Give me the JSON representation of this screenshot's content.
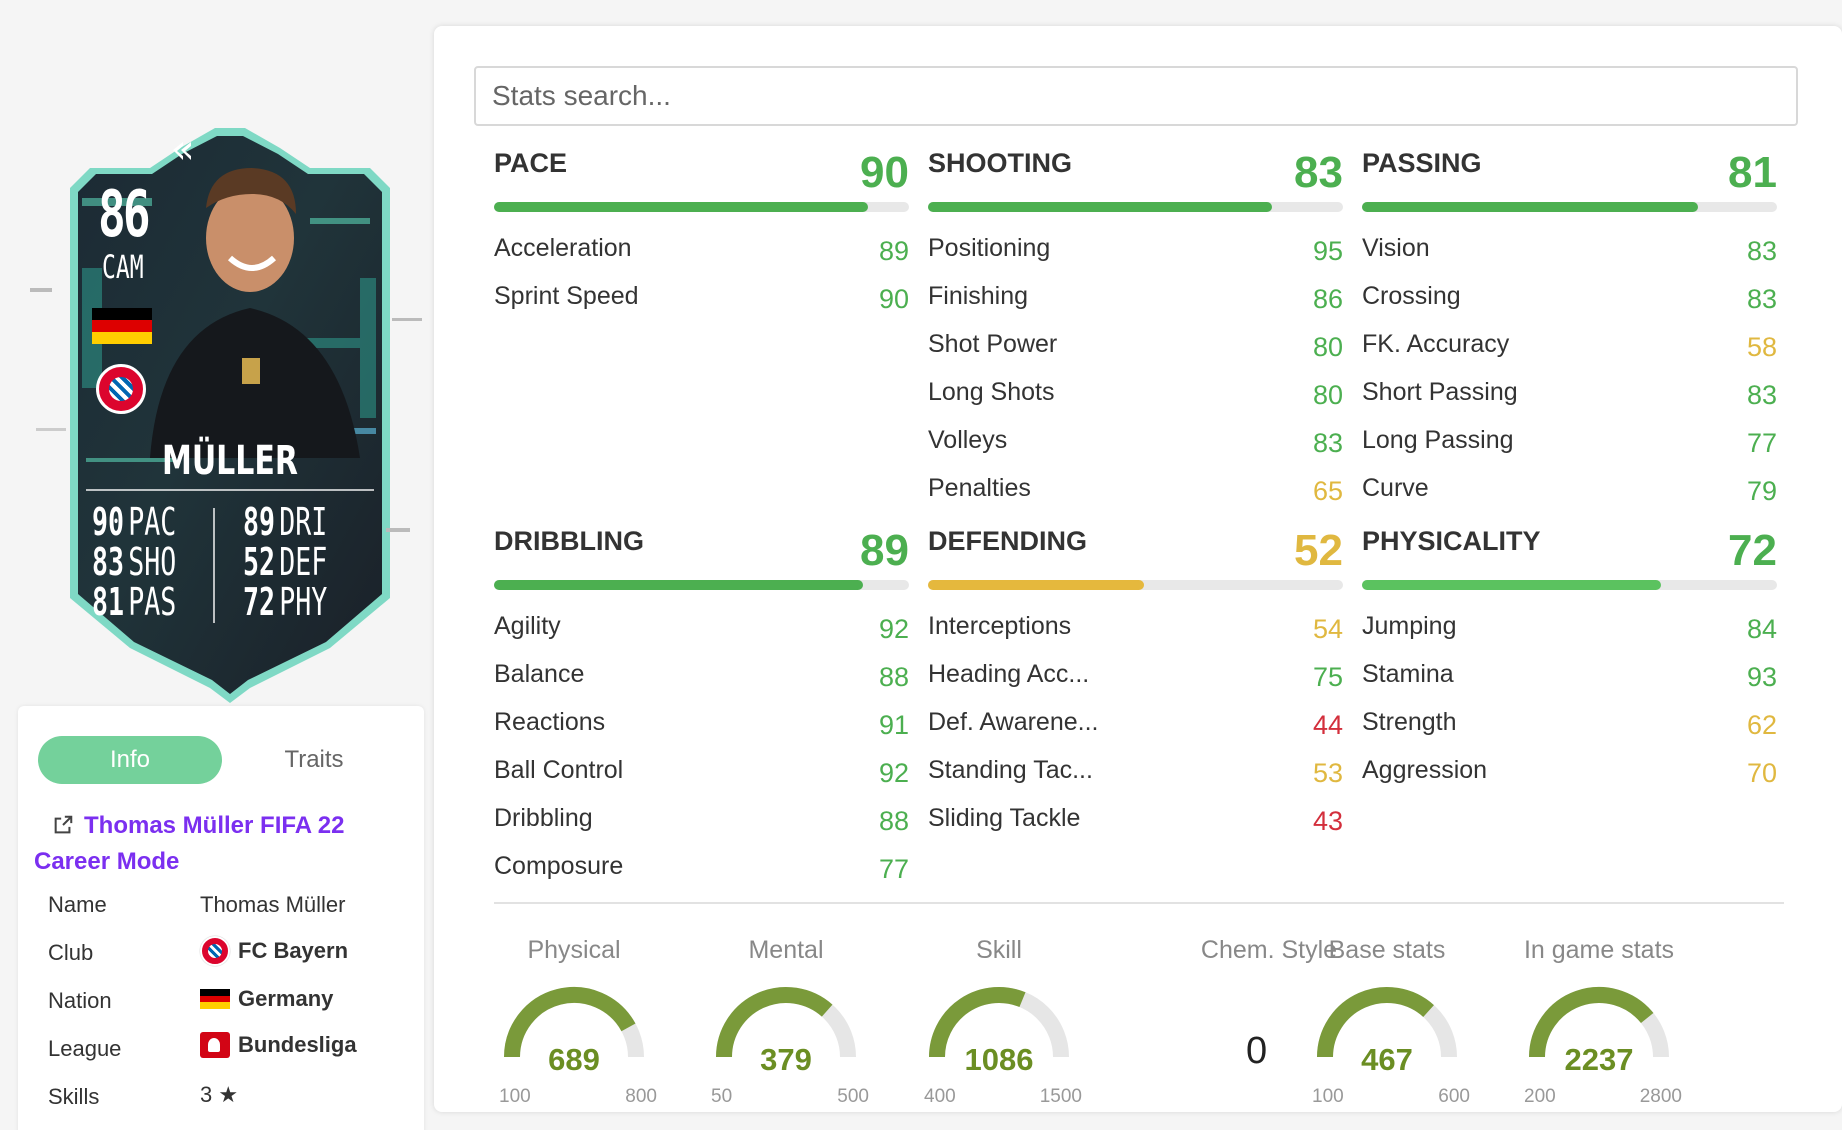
{
  "card": {
    "rating": "86",
    "position": "CAM",
    "name": "MÜLLER",
    "stats": [
      {
        "value": "90",
        "label": "PAC"
      },
      {
        "value": "83",
        "label": "SHO"
      },
      {
        "value": "81",
        "label": "PAS"
      },
      {
        "value": "89",
        "label": "DRI"
      },
      {
        "value": "52",
        "label": "DEF"
      },
      {
        "value": "72",
        "label": "PHY"
      }
    ]
  },
  "info": {
    "tabs": [
      {
        "label": "Info",
        "active": true
      },
      {
        "label": "Traits",
        "active": false
      }
    ],
    "link_line1": "Thomas Müller FIFA 22",
    "link_line2": "Career Mode",
    "rows": [
      {
        "label": "Name",
        "value": "Thomas Müller"
      },
      {
        "label": "Club",
        "value": "FC Bayern"
      },
      {
        "label": "Nation",
        "value": "Germany"
      },
      {
        "label": "League",
        "value": "Bundesliga"
      },
      {
        "label": "Skills",
        "value": "3 ★"
      }
    ]
  },
  "search": {
    "placeholder": "Stats search..."
  },
  "categories": [
    {
      "name": "PACE",
      "value": 90,
      "color": "g",
      "stats": [
        {
          "name": "Acceleration",
          "value": 89,
          "color": "g"
        },
        {
          "name": "Sprint Speed",
          "value": 90,
          "color": "g"
        }
      ]
    },
    {
      "name": "SHOOTING",
      "value": 83,
      "color": "g",
      "stats": [
        {
          "name": "Positioning",
          "value": 95,
          "color": "g"
        },
        {
          "name": "Finishing",
          "value": 86,
          "color": "g"
        },
        {
          "name": "Shot Power",
          "value": 80,
          "color": "g"
        },
        {
          "name": "Long Shots",
          "value": 80,
          "color": "g"
        },
        {
          "name": "Volleys",
          "value": 83,
          "color": "g"
        },
        {
          "name": "Penalties",
          "value": 65,
          "color": "y"
        }
      ]
    },
    {
      "name": "PASSING",
      "value": 81,
      "color": "g",
      "stats": [
        {
          "name": "Vision",
          "value": 83,
          "color": "g"
        },
        {
          "name": "Crossing",
          "value": 83,
          "color": "g"
        },
        {
          "name": "FK. Accuracy",
          "value": 58,
          "color": "y"
        },
        {
          "name": "Short Passing",
          "value": 83,
          "color": "g"
        },
        {
          "name": "Long Passing",
          "value": 77,
          "color": "g"
        },
        {
          "name": "Curve",
          "value": 79,
          "color": "g"
        }
      ]
    },
    {
      "name": "DRIBBLING",
      "value": 89,
      "color": "g",
      "stats": [
        {
          "name": "Agility",
          "value": 92,
          "color": "g"
        },
        {
          "name": "Balance",
          "value": 88,
          "color": "g"
        },
        {
          "name": "Reactions",
          "value": 91,
          "color": "g"
        },
        {
          "name": "Ball Control",
          "value": 92,
          "color": "g"
        },
        {
          "name": "Dribbling",
          "value": 88,
          "color": "g"
        },
        {
          "name": "Composure",
          "value": 77,
          "color": "g"
        }
      ]
    },
    {
      "name": "DEFENDING",
      "value": 52,
      "color": "y",
      "stats": [
        {
          "name": "Interceptions",
          "value": 54,
          "color": "y"
        },
        {
          "name": "Heading Acc...",
          "value": 75,
          "color": "g"
        },
        {
          "name": "Def. Awarene...",
          "value": 44,
          "color": "r"
        },
        {
          "name": "Standing Tac...",
          "value": 53,
          "color": "y"
        },
        {
          "name": "Sliding Tackle",
          "value": 43,
          "color": "r"
        }
      ]
    },
    {
      "name": "PHYSICALITY",
      "value": 72,
      "color": "g",
      "stats": [
        {
          "name": "Jumping",
          "value": 84,
          "color": "g"
        },
        {
          "name": "Stamina",
          "value": 93,
          "color": "g"
        },
        {
          "name": "Strength",
          "value": 62,
          "color": "y"
        },
        {
          "name": "Aggression",
          "value": 70,
          "color": "y"
        }
      ]
    }
  ],
  "gauges": [
    {
      "label": "Physical",
      "value": 689,
      "min": 100,
      "max": 800
    },
    {
      "label": "Mental",
      "value": 379,
      "min": 50,
      "max": 500
    },
    {
      "label": "Skill",
      "value": 1086,
      "min": 400,
      "max": 1500
    },
    {
      "label": "Base stats",
      "value": 467,
      "min": 100,
      "max": 600
    },
    {
      "label": "In game stats",
      "value": 2237,
      "min": 200,
      "max": 2800
    }
  ],
  "chem_style": {
    "label": "Chem. Style",
    "value": "0"
  },
  "colors": {
    "green": "#4caf50",
    "yellow": "#e5b83d",
    "red": "#d32f3c",
    "gauge": "#7a9a3a",
    "tab_active": "#74d19b",
    "link": "#7b2ff0"
  }
}
